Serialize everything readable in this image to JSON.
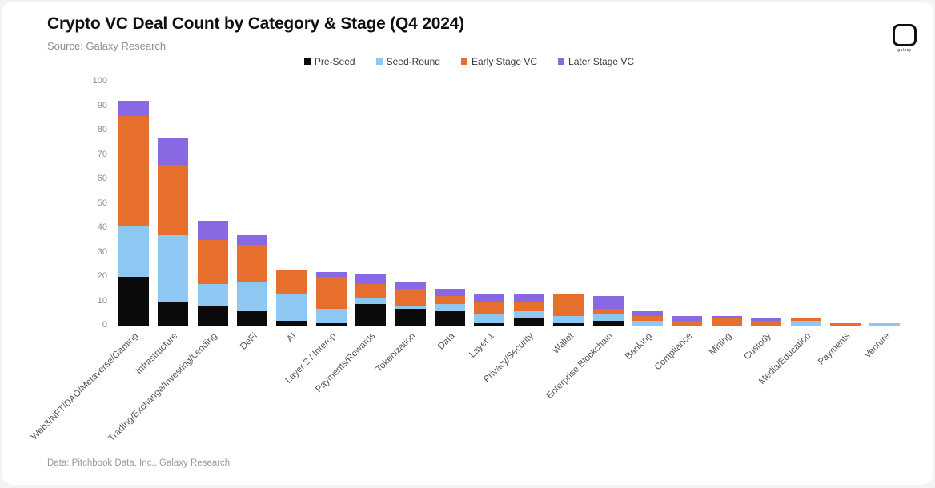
{
  "logo": {
    "text": "galaxy"
  },
  "chart_data": {
    "type": "bar",
    "variant": "stacked-vertical",
    "title": "Crypto VC Deal Count by Category & Stage (Q4 2024)",
    "source": "Source: Galaxy Research",
    "footnote": "Data: Pitchbook Data, Inc., Galaxy Research",
    "xlabel": "",
    "ylabel": "",
    "ylim": [
      0,
      100
    ],
    "y_ticks": [
      0,
      10,
      20,
      30,
      40,
      50,
      60,
      70,
      80,
      90,
      100
    ],
    "grid": false,
    "legend_position": "top-center",
    "categories": [
      "Web3/NFT/DAO/Metaverse/Gaming",
      "Infrastructure",
      "Trading/Exchange/Investing/Lending",
      "DeFi",
      "AI",
      "Layer 2 / Interop",
      "Payments/Rewards",
      "Tokenization",
      "Data",
      "Layer 1",
      "Privacy/Security",
      "Wallet",
      "Enterprise Blockchain",
      "Banking",
      "Compliance",
      "Mining",
      "Custody",
      "Media/Education",
      "Payments",
      "Venture"
    ],
    "series": [
      {
        "name": "Pre-Seed",
        "color": "#0a0a0a",
        "values": [
          20,
          10,
          8,
          6,
          2,
          1,
          9,
          7,
          6,
          1,
          3,
          1,
          2,
          0,
          0,
          0,
          0,
          0,
          0,
          0
        ]
      },
      {
        "name": "Seed-Round",
        "color": "#8fc7f3",
        "values": [
          21,
          27,
          9,
          12,
          11,
          6,
          2,
          1,
          3,
          4,
          3,
          3,
          3,
          2,
          0,
          0,
          0,
          2,
          0,
          1
        ]
      },
      {
        "name": "Early Stage VC",
        "color": "#e76f2d",
        "values": [
          45,
          29,
          18,
          15,
          10,
          13,
          6,
          7,
          3,
          5,
          4,
          9,
          2,
          2,
          2,
          3,
          2,
          1,
          1,
          0
        ]
      },
      {
        "name": "Later Stage VC",
        "color": "#8969e3",
        "values": [
          6,
          11,
          8,
          4,
          0,
          2,
          4,
          3,
          3,
          3,
          3,
          0,
          5,
          2,
          2,
          1,
          1,
          0,
          0,
          0
        ]
      }
    ],
    "totals": [
      92,
      77,
      43,
      37,
      23,
      22,
      21,
      18,
      15,
      13,
      13,
      13,
      12,
      6,
      4,
      4,
      3,
      3,
      1,
      1
    ]
  }
}
